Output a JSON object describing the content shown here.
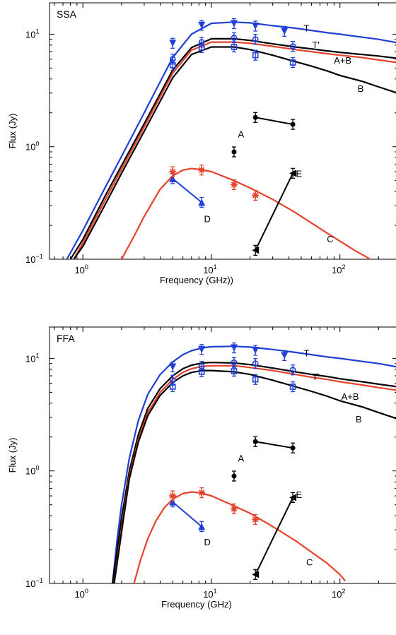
{
  "chart_data": [
    {
      "type": "line",
      "panel_label": "SSA",
      "xlabel": "Frequency (GHz))",
      "ylabel": "Flux (Jy)",
      "xscale": "log",
      "yscale": "log",
      "xlim": [
        0.55,
        280
      ],
      "ylim": [
        0.1,
        19
      ],
      "x_ticks": [
        {
          "value": 1,
          "base": "10",
          "exp": "0"
        },
        {
          "value": 10,
          "base": "10",
          "exp": "1"
        },
        {
          "value": 100,
          "base": "10",
          "exp": "2"
        }
      ],
      "y_ticks": [
        {
          "value": 0.1,
          "base": "10",
          "exp": "−1"
        },
        {
          "value": 1,
          "base": "10",
          "exp": "0"
        },
        {
          "value": 10,
          "base": "10",
          "exp": "1"
        }
      ],
      "grid": false,
      "curves": [
        {
          "label": "T",
          "color": "#1f3fd6",
          "x": [
            0.75,
            1,
            1.5,
            2,
            3,
            5,
            7,
            10,
            15,
            20,
            30,
            45,
            60,
            80,
            100,
            150,
            200,
            280
          ],
          "y": [
            0.1,
            0.18,
            0.44,
            0.82,
            2.0,
            6.2,
            10.0,
            12.5,
            12.8,
            12.6,
            11.9,
            11.3,
            10.8,
            10.3,
            10.0,
            9.4,
            9.0,
            8.4
          ]
        },
        {
          "label": "T'",
          "color": "#000000",
          "x": [
            0.8,
            1,
            1.5,
            2,
            3,
            5,
            7,
            10,
            15,
            20,
            30,
            45,
            60,
            80,
            100,
            150,
            200,
            280
          ],
          "y": [
            0.1,
            0.15,
            0.37,
            0.68,
            1.6,
            4.8,
            7.6,
            9.1,
            9.1,
            8.8,
            8.2,
            7.7,
            7.4,
            7.1,
            6.9,
            6.6,
            6.4,
            6.1
          ]
        },
        {
          "label": "A+B",
          "color": "#e8412b",
          "x": [
            0.85,
            1,
            1.5,
            2,
            3,
            5,
            7,
            10,
            15,
            20,
            30,
            45,
            60,
            80,
            100,
            150,
            200,
            280
          ],
          "y": [
            0.1,
            0.14,
            0.34,
            0.63,
            1.5,
            4.5,
            7.2,
            8.5,
            8.5,
            8.3,
            7.8,
            7.3,
            7.0,
            6.7,
            6.5,
            6.2,
            5.9,
            5.6
          ]
        },
        {
          "label": "B",
          "color": "#000000",
          "x": [
            0.85,
            1,
            1.5,
            2,
            3,
            5,
            7,
            10,
            15,
            20,
            30,
            45,
            60,
            80,
            100,
            150,
            200,
            280
          ],
          "y": [
            0.1,
            0.13,
            0.31,
            0.58,
            1.37,
            4.1,
            6.6,
            7.7,
            7.7,
            7.3,
            6.5,
            5.7,
            5.2,
            4.7,
            4.3,
            3.8,
            3.4,
            3.0
          ]
        },
        {
          "label": "C",
          "color": "#e8412b",
          "x": [
            2,
            2.5,
            3,
            4,
            5,
            6,
            7,
            8,
            10,
            15,
            20,
            30,
            45,
            60,
            80,
            100,
            130,
            160,
            200
          ],
          "y": [
            0.1,
            0.16,
            0.24,
            0.42,
            0.55,
            0.62,
            0.64,
            0.63,
            0.6,
            0.5,
            0.43,
            0.34,
            0.26,
            0.21,
            0.17,
            0.145,
            0.12,
            0.105,
            0.09
          ]
        }
      ],
      "segments": [
        {
          "label": "D",
          "color": "#1f3fd6",
          "marker": "up-triangle",
          "x": [
            5,
            8.4
          ],
          "y": [
            0.52,
            0.32
          ]
        },
        {
          "label": "E",
          "color": "#000000",
          "marker": "left-triangle",
          "x": [
            22,
            43
          ],
          "y": [
            0.12,
            0.58
          ]
        },
        {
          "label": "A",
          "color": "#000000",
          "marker": "dot",
          "x": [
            22,
            43
          ],
          "y": [
            1.82,
            1.58
          ]
        }
      ],
      "points": [
        {
          "series": "T",
          "color": "#1f3fd6",
          "marker": "down-triangle",
          "x": [
            5,
            8.4,
            15,
            22,
            37
          ],
          "y": [
            8.3,
            12.0,
            12.4,
            11.8,
            10.6
          ]
        },
        {
          "series": "T'",
          "color": "#1f3fd6",
          "marker": "circle",
          "x": [
            5,
            8.4,
            15,
            22,
            43
          ],
          "y": [
            6.0,
            8.5,
            9.3,
            9.0,
            7.8
          ]
        },
        {
          "series": "B",
          "color": "#1f3fd6",
          "marker": "square",
          "x": [
            5,
            8.4,
            15,
            22,
            43
          ],
          "y": [
            5.3,
            7.6,
            7.7,
            6.5,
            5.6
          ]
        },
        {
          "series": "C",
          "color": "#e8412b",
          "marker": "star",
          "x": [
            5,
            8.4,
            15,
            22
          ],
          "y": [
            0.6,
            0.62,
            0.46,
            0.37
          ]
        },
        {
          "series": "single",
          "color": "#000000",
          "marker": "dot",
          "x": [
            15
          ],
          "y": [
            0.9
          ]
        }
      ],
      "labels": [
        {
          "text": "T",
          "x": 55,
          "y": 11.4
        },
        {
          "text": "T'",
          "x": 65,
          "y": 8.1
        },
        {
          "text": "A+B",
          "x": 105,
          "y": 5.9
        },
        {
          "text": "B",
          "x": 145,
          "y": 3.3
        },
        {
          "text": "A",
          "x": 17,
          "y": 1.3
        },
        {
          "text": "E",
          "x": 48,
          "y": 0.58
        },
        {
          "text": "D",
          "x": 9.3,
          "y": 0.23
        },
        {
          "text": "C",
          "x": 84,
          "y": 0.152
        }
      ]
    },
    {
      "type": "line",
      "panel_label": "FFA",
      "xlabel": "Frequency (GHz)",
      "ylabel": "Flux (Jy)",
      "xscale": "log",
      "yscale": "log",
      "xlim": [
        0.55,
        280
      ],
      "ylim": [
        0.1,
        19
      ],
      "x_ticks": [
        {
          "value": 1,
          "base": "10",
          "exp": "0"
        },
        {
          "value": 10,
          "base": "10",
          "exp": "1"
        },
        {
          "value": 100,
          "base": "10",
          "exp": "2"
        }
      ],
      "y_ticks": [
        {
          "value": 0.1,
          "base": "10",
          "exp": "−1"
        },
        {
          "value": 1,
          "base": "10",
          "exp": "0"
        },
        {
          "value": 10,
          "base": "10",
          "exp": "1"
        }
      ],
      "grid": false,
      "curves": [
        {
          "label": "T",
          "color": "#1f3fd6",
          "x": [
            1.7,
            1.85,
            2,
            2.3,
            2.7,
            3.2,
            4,
            5,
            6,
            7,
            8.5,
            10,
            15,
            20,
            30,
            45,
            60,
            80,
            100,
            150,
            200,
            280
          ],
          "y": [
            0.1,
            0.25,
            0.5,
            1.3,
            2.8,
            4.8,
            7.2,
            9.3,
            10.8,
            11.7,
            12.4,
            12.7,
            12.8,
            12.6,
            12.0,
            11.3,
            10.8,
            10.3,
            10.0,
            9.4,
            9.0,
            8.4
          ]
        },
        {
          "label": "T'",
          "color": "#000000",
          "x": [
            1.7,
            1.85,
            2,
            2.3,
            2.7,
            3.2,
            4,
            5,
            6,
            7,
            8.5,
            10,
            15,
            20,
            30,
            45,
            60,
            80,
            100,
            150,
            200,
            280
          ],
          "y": [
            0.1,
            0.2,
            0.38,
            1.0,
            2.1,
            3.6,
            5.4,
            7.0,
            8.1,
            8.7,
            9.1,
            9.2,
            9.1,
            8.8,
            8.2,
            7.6,
            7.2,
            6.9,
            6.6,
            6.2,
            5.9,
            5.6
          ]
        },
        {
          "label": "A+B",
          "color": "#e8412b",
          "x": [
            1.75,
            1.9,
            2.05,
            2.3,
            2.7,
            3.2,
            4,
            5,
            6,
            7,
            8.5,
            10,
            15,
            20,
            30,
            45,
            60,
            80,
            100,
            150,
            200,
            280
          ],
          "y": [
            0.1,
            0.2,
            0.37,
            0.9,
            1.9,
            3.3,
            5.0,
            6.5,
            7.5,
            8.1,
            8.5,
            8.6,
            8.6,
            8.3,
            7.8,
            7.2,
            6.8,
            6.5,
            6.2,
            5.8,
            5.5,
            5.2
          ]
        },
        {
          "label": "B",
          "color": "#000000",
          "x": [
            1.75,
            1.9,
            2.05,
            2.3,
            2.7,
            3.2,
            4,
            5,
            6,
            7,
            8.5,
            10,
            15,
            20,
            30,
            45,
            60,
            80,
            100,
            150,
            200,
            280
          ],
          "y": [
            0.1,
            0.19,
            0.35,
            0.85,
            1.8,
            3.1,
            4.7,
            6.1,
            7.0,
            7.5,
            7.8,
            7.8,
            7.6,
            7.2,
            6.4,
            5.6,
            5.1,
            4.6,
            4.2,
            3.7,
            3.3,
            2.9
          ]
        },
        {
          "label": "C",
          "color": "#e8412b",
          "x": [
            2.5,
            2.8,
            3.2,
            3.7,
            4.3,
            5,
            6,
            7,
            8,
            10,
            15,
            20,
            30,
            45,
            60,
            80,
            100,
            110
          ],
          "y": [
            0.1,
            0.16,
            0.25,
            0.36,
            0.47,
            0.56,
            0.63,
            0.65,
            0.64,
            0.6,
            0.49,
            0.42,
            0.32,
            0.24,
            0.19,
            0.15,
            0.12,
            0.105
          ]
        }
      ],
      "segments": [
        {
          "label": "D",
          "color": "#1f3fd6",
          "marker": "up-triangle",
          "x": [
            5,
            8.4
          ],
          "y": [
            0.53,
            0.32
          ]
        },
        {
          "label": "E",
          "color": "#000000",
          "marker": "left-triangle",
          "x": [
            22,
            43
          ],
          "y": [
            0.12,
            0.58
          ]
        },
        {
          "label": "A",
          "color": "#000000",
          "marker": "dot",
          "x": [
            22,
            43
          ],
          "y": [
            1.82,
            1.6
          ]
        }
      ],
      "points": [
        {
          "series": "T",
          "color": "#1f3fd6",
          "marker": "down-triangle",
          "x": [
            5,
            8.4,
            15,
            22,
            37
          ],
          "y": [
            8.4,
            12.0,
            12.4,
            11.8,
            10.6
          ]
        },
        {
          "series": "T'",
          "color": "#1f3fd6",
          "marker": "circle",
          "x": [
            5,
            8.4,
            15,
            22,
            43
          ],
          "y": [
            6.4,
            8.5,
            9.2,
            9.0,
            7.9
          ]
        },
        {
          "series": "B",
          "color": "#1f3fd6",
          "marker": "square",
          "x": [
            5,
            8.4,
            15,
            22,
            43
          ],
          "y": [
            5.6,
            7.6,
            7.7,
            6.5,
            5.6
          ]
        },
        {
          "series": "C",
          "color": "#e8412b",
          "marker": "star",
          "x": [
            5,
            8.4,
            15,
            22
          ],
          "y": [
            0.6,
            0.64,
            0.46,
            0.37
          ]
        },
        {
          "series": "single",
          "color": "#000000",
          "marker": "dot",
          "x": [
            15
          ],
          "y": [
            0.9
          ]
        }
      ],
      "labels": [
        {
          "text": "T",
          "x": 55,
          "y": 11.2
        },
        {
          "text": "T'",
          "x": 65,
          "y": 6.9
        },
        {
          "text": "A+B",
          "x": 120,
          "y": 4.6
        },
        {
          "text": "B",
          "x": 140,
          "y": 2.9
        },
        {
          "text": "A",
          "x": 17,
          "y": 1.3
        },
        {
          "text": "E",
          "x": 48,
          "y": 0.62
        },
        {
          "text": "D",
          "x": 9.3,
          "y": 0.235
        },
        {
          "text": "C",
          "x": 58,
          "y": 0.155
        }
      ]
    }
  ]
}
